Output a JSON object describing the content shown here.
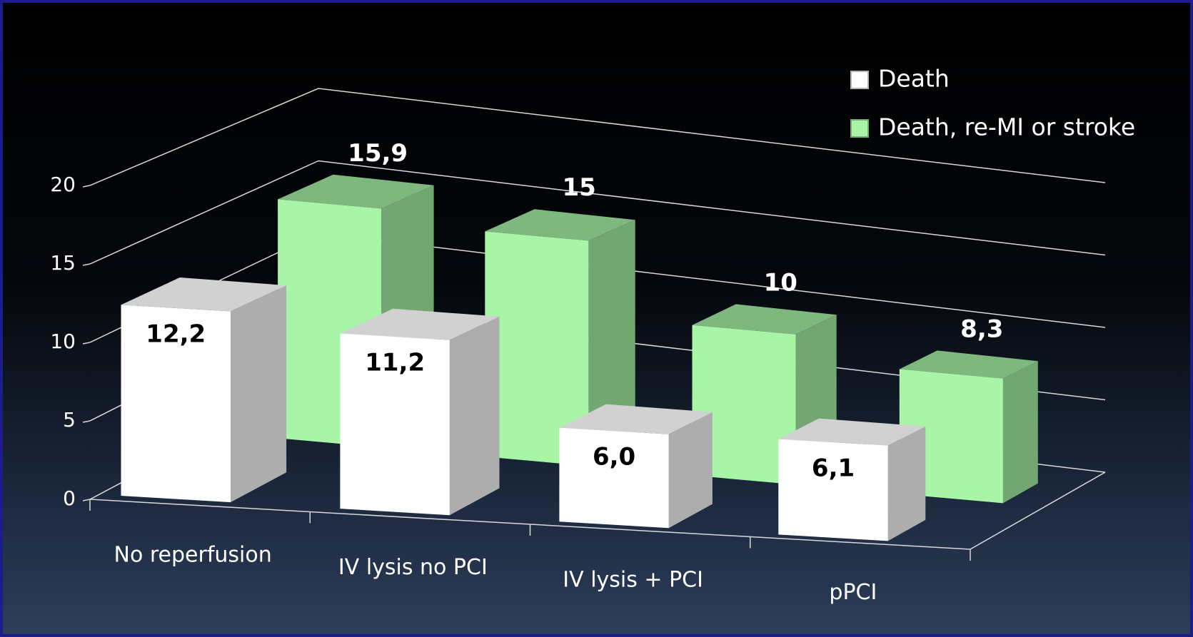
{
  "chart_data": {
    "type": "bar3d",
    "categories": [
      "No reperfusion",
      "IV lysis no PCI",
      "IV lysis + PCI",
      "pPCI"
    ],
    "series": [
      {
        "name": "Death",
        "color": "#ffffff",
        "values": [
          12.2,
          11.2,
          6.0,
          6.1
        ],
        "value_labels": [
          "12,2",
          "11,2",
          "6,0",
          "6,1"
        ]
      },
      {
        "name": "Death, re-MI or stroke",
        "color": "#a8f5a8",
        "values": [
          15.9,
          15,
          10,
          8.3
        ],
        "value_labels": [
          "15,9",
          "15",
          "10",
          "8,3"
        ]
      }
    ],
    "ylim": [
      0,
      20
    ],
    "yticks": [
      0,
      5,
      10,
      15,
      20
    ],
    "grid": true,
    "legend": "top-right"
  }
}
